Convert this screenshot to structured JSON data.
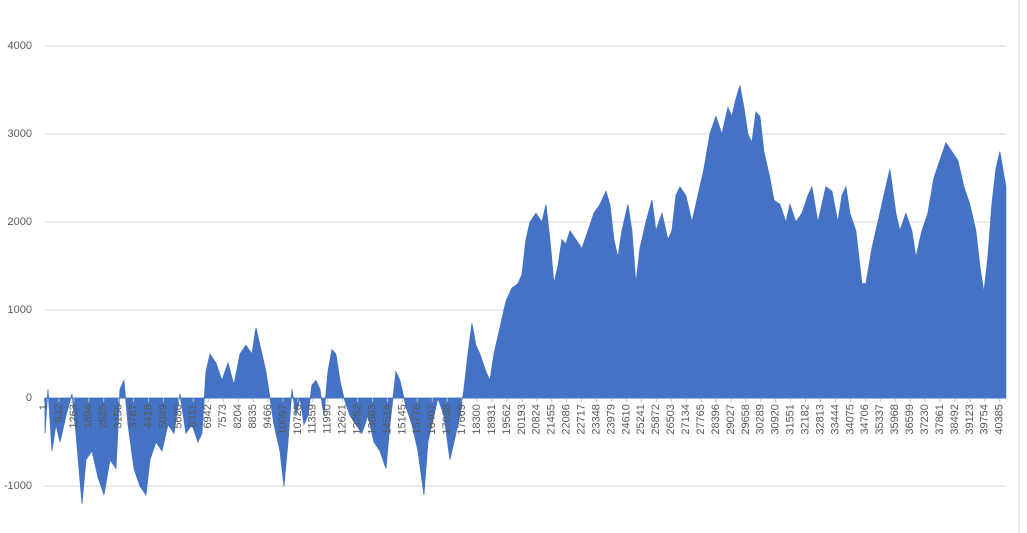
{
  "chart_data": {
    "type": "area",
    "color": "#4472c4",
    "grid": true,
    "x": [
      42,
      169,
      338,
      507,
      676,
      930,
      1183,
      1352,
      1606,
      1775,
      2028,
      2282,
      2535,
      2789,
      3042,
      3211,
      3380,
      3549,
      3803,
      4056,
      4310,
      4479,
      4732,
      4986,
      5239,
      5493,
      5746,
      6000,
      6253,
      6507,
      6676,
      6845,
      7014,
      7267,
      7521,
      7774,
      8028,
      8281,
      8535,
      8788,
      8957,
      9211,
      9380,
      9549,
      9718,
      9971,
      10140,
      10309,
      10478,
      10647,
      10816,
      10985,
      11154,
      11323,
      11492,
      11661,
      11830,
      11999,
      12168,
      12337,
      12506,
      12675,
      12929,
      13182,
      13436,
      13689,
      13943,
      14196,
      14450,
      14619,
      14872,
      15041,
      15295,
      15548,
      15802,
      16055,
      16224,
      16393,
      16647,
      16900,
      17154,
      17407,
      17576,
      17745,
      17914,
      18083,
      18252,
      18421,
      18675,
      18844,
      19013,
      19266,
      19520,
      19773,
      20027,
      20196,
      20365,
      20534,
      20787,
      21041,
      21210,
      21379,
      21548,
      21717,
      21886,
      22055,
      22224,
      22477,
      22731,
      22984,
      23238,
      23491,
      23745,
      23914,
      24083,
      24252,
      24421,
      24674,
      24843,
      25012,
      25181,
      25435,
      25688,
      25857,
      26111,
      26364,
      26533,
      26702,
      26871,
      27125,
      27378,
      27632,
      27885,
      28139,
      28392,
      28646,
      28899,
      29068,
      29237,
      29406,
      29575,
      29744,
      29913,
      30082,
      30251,
      30420,
      30674,
      30843,
      31096,
      31350,
      31519,
      31772,
      32026,
      32279,
      32448,
      32702,
      32871,
      33040,
      33293,
      33547,
      33716,
      33885,
      34054,
      34307,
      34561,
      34730,
      34983,
      35237,
      35490,
      35744,
      35997,
      36166,
      36420,
      36673,
      36842,
      37096,
      37349,
      37603,
      37856,
      38110,
      38363,
      38617,
      38870,
      39124,
      39377,
      39546,
      39715,
      39884,
      40053,
      40222,
      40391,
      40645
    ],
    "values": [
      -400,
      100,
      -600,
      -300,
      -500,
      -200,
      50,
      -400,
      -1200,
      -700,
      -600,
      -900,
      -1100,
      -700,
      -800,
      100,
      200,
      -300,
      -800,
      -1000,
      -1100,
      -700,
      -500,
      -600,
      -300,
      -400,
      50,
      -400,
      -300,
      -500,
      -400,
      300,
      500,
      400,
      200,
      400,
      150,
      500,
      600,
      500,
      800,
      500,
      300,
      0,
      -300,
      -600,
      -1000,
      -500,
      100,
      -200,
      0,
      -300,
      -200,
      150,
      200,
      100,
      -200,
      300,
      550,
      500,
      200,
      0,
      -200,
      -300,
      -400,
      -200,
      -500,
      -600,
      -800,
      -300,
      300,
      200,
      -100,
      -300,
      -600,
      -1100,
      -500,
      -300,
      0,
      -200,
      -700,
      -400,
      -200,
      100,
      500,
      850,
      600,
      500,
      300,
      200,
      500,
      800,
      1100,
      1250,
      1300,
      1400,
      1800,
      2000,
      2100,
      2000,
      2200,
      1800,
      1300,
      1500,
      1800,
      1750,
      1900,
      1800,
      1700,
      1900,
      2100,
      2200,
      2350,
      2200,
      1800,
      1600,
      1900,
      2200,
      1900,
      1300,
      1700,
      2000,
      2250,
      1900,
      2100,
      1800,
      1900,
      2300,
      2400,
      2300,
      2000,
      2300,
      2600,
      3000,
      3200,
      3000,
      3300,
      3200,
      3400,
      3550,
      3300,
      3000,
      2900,
      3250,
      3200,
      2800,
      2500,
      2250,
      2200,
      2000,
      2200,
      2000,
      2100,
      2300,
      2400,
      2000,
      2200,
      2400,
      2350,
      2000,
      2300,
      2400,
      2100,
      1900,
      1300,
      1300,
      1700,
      2000,
      2300,
      2600,
      2100,
      1900,
      2100,
      1900,
      1600,
      1900,
      2100,
      2500,
      2700,
      2900,
      2800,
      2700,
      2400,
      2200,
      1900,
      1500,
      1200,
      1600,
      2200,
      2600,
      2800,
      2400
    ],
    "xlim": [
      1,
      40650
    ],
    "xticks": [
      1,
      632,
      1263,
      1894,
      2525,
      3156,
      3787,
      4418,
      5049,
      5680,
      6311,
      6942,
      7573,
      8204,
      8835,
      9466,
      10097,
      10728,
      11359,
      11990,
      12621,
      13252,
      13883,
      14514,
      15145,
      15776,
      16407,
      17038,
      17669,
      18300,
      18931,
      19562,
      20193,
      20824,
      21455,
      22086,
      22717,
      23348,
      23979,
      24610,
      25241,
      25872,
      26503,
      27134,
      27765,
      28396,
      29027,
      29658,
      30289,
      30920,
      31551,
      32182,
      32813,
      33444,
      34075,
      34706,
      35337,
      35968,
      36599,
      37230,
      37861,
      38492,
      39123,
      39754,
      40385
    ],
    "ylim": [
      -1300,
      4000
    ],
    "yticks": [
      -1000,
      0,
      1000,
      2000,
      3000,
      4000
    ]
  }
}
